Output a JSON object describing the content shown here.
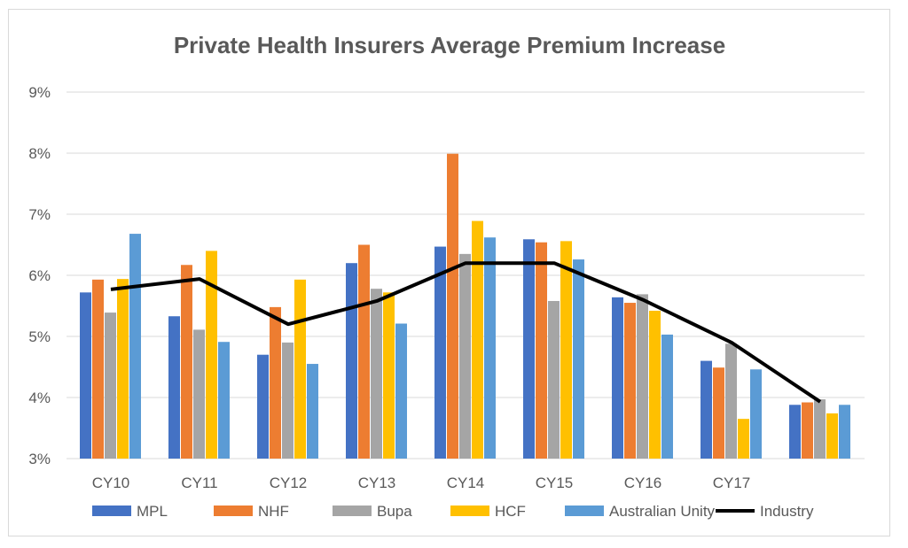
{
  "chart_data": {
    "type": "bar",
    "title": "Private Health Insurers Average Premium Increase",
    "categories": [
      "CY10",
      "CY11",
      "CY12",
      "CY13",
      "CY14",
      "CY15",
      "CY16",
      "CY17",
      ""
    ],
    "ylim": [
      3,
      9
    ],
    "yticks": [
      "3%",
      "4%",
      "5%",
      "6%",
      "7%",
      "8%",
      "9%"
    ],
    "grid": true,
    "legend_position": "bottom",
    "series": [
      {
        "name": "MPL",
        "color": "#4472c4",
        "values": [
          5.72,
          5.33,
          4.7,
          6.2,
          6.47,
          6.59,
          5.64,
          4.6,
          3.88
        ]
      },
      {
        "name": "NHF",
        "color": "#ed7d31",
        "values": [
          5.93,
          6.17,
          5.48,
          6.5,
          7.99,
          6.54,
          5.55,
          4.49,
          3.92
        ]
      },
      {
        "name": "Bupa",
        "color": "#a5a5a5",
        "values": [
          5.39,
          5.11,
          4.9,
          5.78,
          6.35,
          5.58,
          5.69,
          4.88,
          3.97
        ]
      },
      {
        "name": "HCF",
        "color": "#ffc000",
        "values": [
          5.94,
          6.4,
          5.93,
          5.72,
          6.89,
          6.56,
          5.42,
          3.65,
          3.74
        ]
      },
      {
        "name": "Australian Unity",
        "color": "#5b9bd5",
        "values": [
          6.68,
          4.91,
          4.55,
          5.21,
          6.62,
          6.26,
          5.03,
          4.46,
          3.88
        ]
      }
    ],
    "line_series": {
      "name": "Industry",
      "color": "#000000",
      "values": [
        5.77,
        5.94,
        5.2,
        5.58,
        6.2,
        6.2,
        5.6,
        4.9,
        3.93
      ]
    }
  }
}
